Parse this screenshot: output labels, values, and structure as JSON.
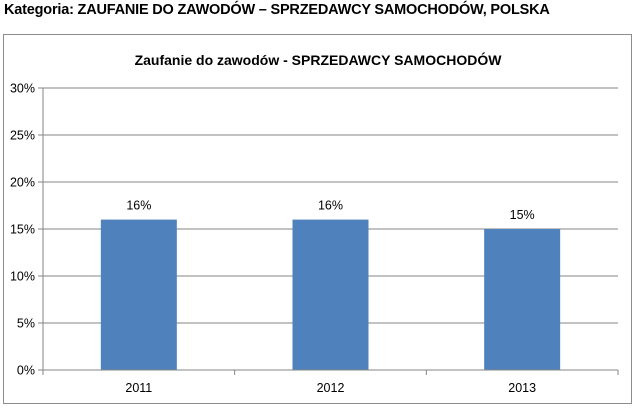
{
  "heading": "Kategoria: ZAUFANIE DO ZAWODÓW – SPRZEDAWCY SAMOCHODÓW, POLSKA",
  "colors": {
    "bar": "#4f81bd",
    "grid": "#868686",
    "axis": "#868686",
    "border": "#8c8c8c"
  },
  "chart_data": {
    "type": "bar",
    "title": "Zaufanie do zawodów - SPRZEDAWCY SAMOCHODÓW",
    "categories": [
      "2011",
      "2012",
      "2013"
    ],
    "values": [
      16,
      16,
      15
    ],
    "data_labels": [
      "16%",
      "16%",
      "15%"
    ],
    "y_ticks": [
      "0%",
      "5%",
      "10%",
      "15%",
      "20%",
      "25%",
      "30%"
    ],
    "ylim": [
      0,
      30
    ],
    "y_unit": "%",
    "grid": true,
    "legend": "none"
  }
}
